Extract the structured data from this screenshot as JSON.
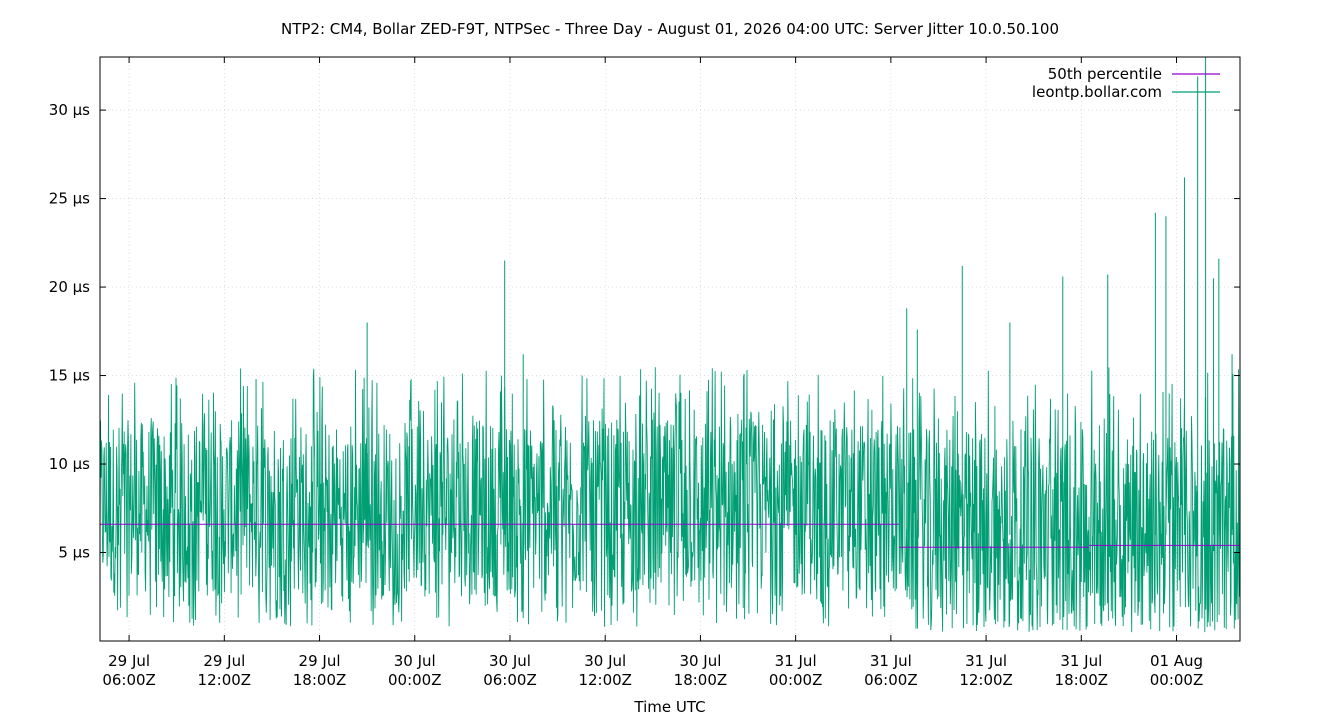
{
  "chart_data": {
    "type": "line",
    "title": "NTP2: CM4, Bollar ZED-F9T, NTPSec - Three Day - August 01, 2026 04:00 UTC: Server Jitter 10.0.50.100",
    "xlabel": "Time UTC",
    "ylabel": "",
    "x_range": [
      "2026-07-29T04:10Z",
      "2026-08-01T04:00Z"
    ],
    "ylim": [
      0,
      33
    ],
    "y_unit": "µs",
    "grid": true,
    "legend_position": "top-right",
    "x_ticks": [
      {
        "t": "2026-07-29T06:00Z",
        "line1": "29 Jul",
        "line2": "06:00Z"
      },
      {
        "t": "2026-07-29T12:00Z",
        "line1": "29 Jul",
        "line2": "12:00Z"
      },
      {
        "t": "2026-07-29T18:00Z",
        "line1": "29 Jul",
        "line2": "18:00Z"
      },
      {
        "t": "2026-07-30T00:00Z",
        "line1": "30 Jul",
        "line2": "00:00Z"
      },
      {
        "t": "2026-07-30T06:00Z",
        "line1": "30 Jul",
        "line2": "06:00Z"
      },
      {
        "t": "2026-07-30T12:00Z",
        "line1": "30 Jul",
        "line2": "12:00Z"
      },
      {
        "t": "2026-07-30T18:00Z",
        "line1": "30 Jul",
        "line2": "18:00Z"
      },
      {
        "t": "2026-07-31T00:00Z",
        "line1": "31 Jul",
        "line2": "00:00Z"
      },
      {
        "t": "2026-07-31T06:00Z",
        "line1": "31 Jul",
        "line2": "06:00Z"
      },
      {
        "t": "2026-07-31T12:00Z",
        "line1": "31 Jul",
        "line2": "12:00Z"
      },
      {
        "t": "2026-07-31T18:00Z",
        "line1": "31 Jul",
        "line2": "18:00Z"
      },
      {
        "t": "2026-08-01T00:00Z",
        "line1": "01 Aug",
        "line2": "00:00Z"
      }
    ],
    "y_ticks": [
      {
        "value": 5,
        "label": "5 µs"
      },
      {
        "value": 10,
        "label": "10 µs"
      },
      {
        "value": 15,
        "label": "15 µs"
      },
      {
        "value": 20,
        "label": "20 µs"
      },
      {
        "value": 25,
        "label": "25 µs"
      },
      {
        "value": 30,
        "label": "30 µs"
      }
    ],
    "series": [
      {
        "name": "50th percentile",
        "color": "#9400d3",
        "value_segments": [
          {
            "from": "2026-07-29T04:10Z",
            "to": "2026-07-31T06:30Z",
            "value": 6.6
          },
          {
            "from": "2026-07-31T06:30Z",
            "to": "2026-07-31T18:30Z",
            "value": 5.3
          },
          {
            "from": "2026-07-31T18:30Z",
            "to": "2026-08-01T04:00Z",
            "value": 5.4
          }
        ]
      },
      {
        "name": "leontp.bollar.com",
        "color": "#009e73",
        "regimes": [
          {
            "from": "2026-07-29T04:10Z",
            "to": "2026-07-31T06:45Z",
            "typical_min": 2.5,
            "typical_max": 12.5,
            "min": 0.8,
            "max": 15.5
          },
          {
            "from": "2026-07-31T06:45Z",
            "to": "2026-08-01T04:00Z",
            "typical_min": 1.2,
            "typical_max": 12.0,
            "min": 0.5,
            "max": 15.5
          }
        ],
        "spikes": [
          {
            "t": "2026-07-29T14:00Z",
            "value": 14.8
          },
          {
            "t": "2026-07-29T21:00Z",
            "value": 18.0
          },
          {
            "t": "2026-07-30T05:40Z",
            "value": 21.5
          },
          {
            "t": "2026-07-30T06:50Z",
            "value": 16.2
          },
          {
            "t": "2026-07-31T07:00Z",
            "value": 18.8
          },
          {
            "t": "2026-07-31T07:40Z",
            "value": 17.6
          },
          {
            "t": "2026-07-31T10:30Z",
            "value": 21.2
          },
          {
            "t": "2026-07-31T13:30Z",
            "value": 18.0
          },
          {
            "t": "2026-07-31T16:50Z",
            "value": 20.6
          },
          {
            "t": "2026-07-31T19:40Z",
            "value": 20.7
          },
          {
            "t": "2026-07-31T22:40Z",
            "value": 24.2
          },
          {
            "t": "2026-07-31T23:20Z",
            "value": 24.0
          },
          {
            "t": "2026-08-01T00:30Z",
            "value": 26.2
          },
          {
            "t": "2026-08-01T01:20Z",
            "value": 31.9
          },
          {
            "t": "2026-08-01T01:50Z",
            "value": 33.0
          },
          {
            "t": "2026-08-01T02:20Z",
            "value": 20.5
          },
          {
            "t": "2026-08-01T02:40Z",
            "value": 21.6
          },
          {
            "t": "2026-08-01T03:30Z",
            "value": 16.2
          }
        ]
      }
    ]
  }
}
